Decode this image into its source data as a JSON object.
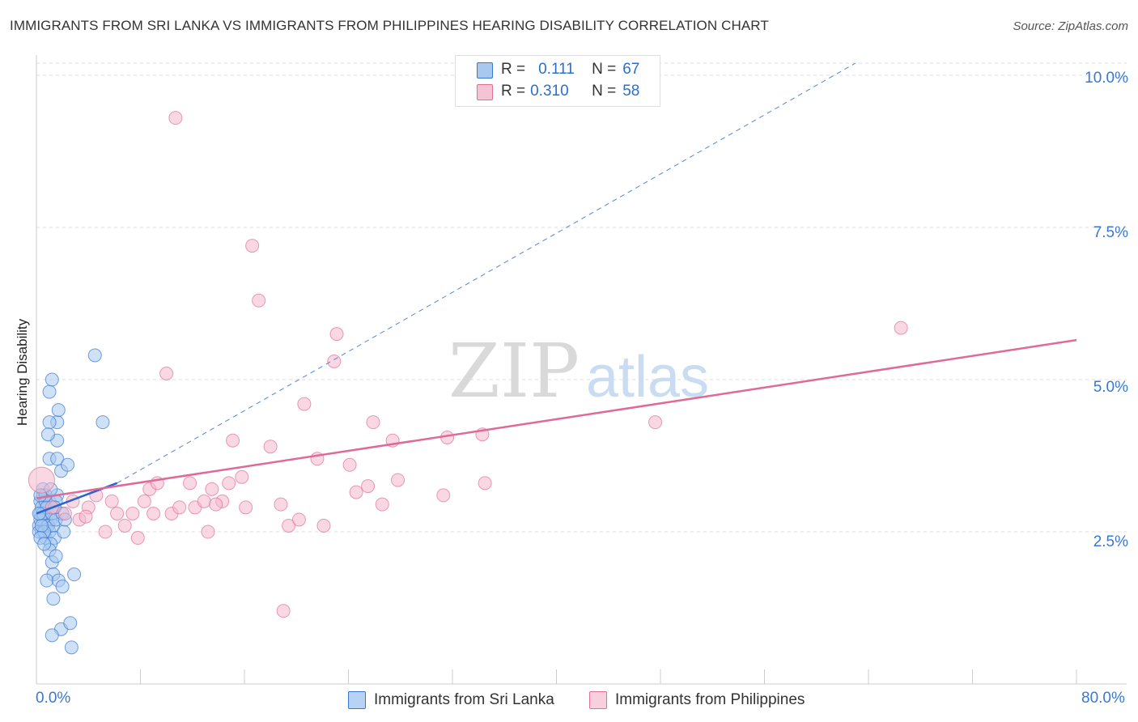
{
  "title": "IMMIGRANTS FROM SRI LANKA VS IMMIGRANTS FROM PHILIPPINES HEARING DISABILITY CORRELATION CHART",
  "source": "Source: ZipAtlas.com",
  "watermark": {
    "zip": "ZIP",
    "atlas": "atlas"
  },
  "colors": {
    "blue": "#3a78d0",
    "blue_fill": "#a8c8f0",
    "blue_line": "#2a66cc",
    "pink": "#e07097",
    "pink_fill": "#f5b8cc",
    "pink_line": "#e06a97",
    "grid": "#dddddd",
    "axis_text": "#3a78d0"
  },
  "legend": {
    "rows": [
      {
        "r_label": "R =",
        "r_value": "0.111",
        "n_label": "N =",
        "n_value": "67",
        "series": "blue"
      },
      {
        "r_label": "R =",
        "r_value": "0.310",
        "n_label": "N =",
        "n_value": "58",
        "series": "pink"
      }
    ]
  },
  "bottom_legend": {
    "items": [
      {
        "label": "Immigrants from Sri Lanka",
        "series": "blue"
      },
      {
        "label": "Immigrants from Philippines",
        "series": "pink"
      }
    ]
  },
  "chart_data": {
    "type": "scatter",
    "title": "IMMIGRANTS FROM SRI LANKA VS IMMIGRANTS FROM PHILIPPINES HEARING DISABILITY CORRELATION CHART",
    "xlabel": "",
    "ylabel": "Hearing Disability",
    "xlim": [
      0,
      80
    ],
    "ylim": [
      0,
      10.2
    ],
    "x_tick_labels": [
      "0.0%",
      "80.0%"
    ],
    "y_ticks": [
      2.5,
      5.0,
      7.5,
      10.0
    ],
    "y_tick_labels": [
      "2.5%",
      "5.0%",
      "7.5%",
      "10.0%"
    ],
    "grid": true,
    "series": [
      {
        "name": "Immigrants from Sri Lanka",
        "color": "blue",
        "R": 0.111,
        "N": 67,
        "trend": {
          "x0": 0,
          "y0": 2.8,
          "x1": 6.2,
          "y1": 3.3,
          "dashed_x1": 63,
          "dashed_y1": 10.2
        },
        "points": [
          [
            0.2,
            2.6
          ],
          [
            0.3,
            2.8
          ],
          [
            0.4,
            2.5
          ],
          [
            0.5,
            2.7
          ],
          [
            0.6,
            2.9
          ],
          [
            0.3,
            3.0
          ],
          [
            0.5,
            3.1
          ],
          [
            0.7,
            2.4
          ],
          [
            0.8,
            2.6
          ],
          [
            0.9,
            2.8
          ],
          [
            1.0,
            3.0
          ],
          [
            1.1,
            2.7
          ],
          [
            0.4,
            2.9
          ],
          [
            0.6,
            2.6
          ],
          [
            0.2,
            2.5
          ],
          [
            0.3,
            2.7
          ],
          [
            0.5,
            2.8
          ],
          [
            0.7,
            3.0
          ],
          [
            0.8,
            2.9
          ],
          [
            0.9,
            2.6
          ],
          [
            1.0,
            2.5
          ],
          [
            1.2,
            2.8
          ],
          [
            1.3,
            2.6
          ],
          [
            1.4,
            2.4
          ],
          [
            1.5,
            2.7
          ],
          [
            1.6,
            3.1
          ],
          [
            1.1,
            2.3
          ],
          [
            0.6,
            2.5
          ],
          [
            0.4,
            2.6
          ],
          [
            0.3,
            2.4
          ],
          [
            0.2,
            2.8
          ],
          [
            0.5,
            3.2
          ],
          [
            1.0,
            2.2
          ],
          [
            1.2,
            2.0
          ],
          [
            1.5,
            2.1
          ],
          [
            1.3,
            1.8
          ],
          [
            0.8,
            1.7
          ],
          [
            1.7,
            1.7
          ],
          [
            2.9,
            1.8
          ],
          [
            2.0,
            1.6
          ],
          [
            1.3,
            1.4
          ],
          [
            1.9,
            0.9
          ],
          [
            2.6,
            1.0
          ],
          [
            1.2,
            0.8
          ],
          [
            2.7,
            0.6
          ],
          [
            1.0,
            4.8
          ],
          [
            1.2,
            5.0
          ],
          [
            1.6,
            4.3
          ],
          [
            1.0,
            4.3
          ],
          [
            1.7,
            4.5
          ],
          [
            1.6,
            4.0
          ],
          [
            0.9,
            4.1
          ],
          [
            1.0,
            3.7
          ],
          [
            1.6,
            3.7
          ],
          [
            1.9,
            3.5
          ],
          [
            2.4,
            3.6
          ],
          [
            4.5,
            5.4
          ],
          [
            5.1,
            4.3
          ],
          [
            1.5,
            3.0
          ],
          [
            2.0,
            2.8
          ],
          [
            2.1,
            2.5
          ],
          [
            0.7,
            3.1
          ],
          [
            1.1,
            3.2
          ],
          [
            0.3,
            3.1
          ],
          [
            1.4,
            2.9
          ],
          [
            0.6,
            2.3
          ],
          [
            2.2,
            2.7
          ]
        ]
      },
      {
        "name": "Immigrants from Philippines",
        "color": "pink",
        "R": 0.31,
        "N": 58,
        "trend": {
          "x0": 0,
          "y0": 3.05,
          "x1": 80,
          "y1": 5.65
        },
        "points": [
          [
            0.4,
            3.35
          ],
          [
            1.2,
            2.9
          ],
          [
            2.2,
            2.8
          ],
          [
            2.8,
            3.0
          ],
          [
            3.3,
            2.7
          ],
          [
            4.0,
            2.9
          ],
          [
            4.6,
            3.1
          ],
          [
            5.3,
            2.5
          ],
          [
            5.8,
            3.0
          ],
          [
            6.2,
            2.8
          ],
          [
            6.8,
            2.6
          ],
          [
            7.4,
            2.8
          ],
          [
            7.8,
            2.4
          ],
          [
            8.3,
            3.0
          ],
          [
            8.7,
            3.2
          ],
          [
            9.3,
            3.3
          ],
          [
            10.0,
            5.1
          ],
          [
            10.4,
            2.8
          ],
          [
            11.0,
            2.9
          ],
          [
            11.8,
            3.3
          ],
          [
            12.2,
            2.9
          ],
          [
            12.9,
            3.0
          ],
          [
            13.2,
            2.5
          ],
          [
            13.5,
            3.2
          ],
          [
            14.3,
            3.0
          ],
          [
            14.8,
            3.3
          ],
          [
            15.1,
            4.0
          ],
          [
            15.8,
            3.4
          ],
          [
            16.1,
            2.9
          ],
          [
            16.6,
            7.2
          ],
          [
            17.1,
            6.3
          ],
          [
            18.0,
            3.9
          ],
          [
            18.8,
            2.95
          ],
          [
            19.4,
            2.6
          ],
          [
            20.2,
            2.7
          ],
          [
            20.6,
            4.6
          ],
          [
            21.6,
            3.7
          ],
          [
            22.1,
            2.6
          ],
          [
            22.9,
            5.3
          ],
          [
            23.1,
            5.75
          ],
          [
            24.1,
            3.6
          ],
          [
            24.6,
            3.15
          ],
          [
            25.5,
            3.25
          ],
          [
            25.9,
            4.3
          ],
          [
            26.6,
            2.95
          ],
          [
            27.4,
            4.0
          ],
          [
            27.8,
            3.35
          ],
          [
            31.3,
            3.1
          ],
          [
            31.6,
            4.05
          ],
          [
            34.3,
            4.1
          ],
          [
            34.5,
            3.3
          ],
          [
            47.6,
            4.3
          ],
          [
            66.5,
            5.85
          ],
          [
            10.7,
            9.3
          ],
          [
            19.0,
            1.2
          ],
          [
            3.8,
            2.75
          ],
          [
            9.0,
            2.8
          ],
          [
            13.8,
            2.95
          ]
        ]
      }
    ]
  }
}
